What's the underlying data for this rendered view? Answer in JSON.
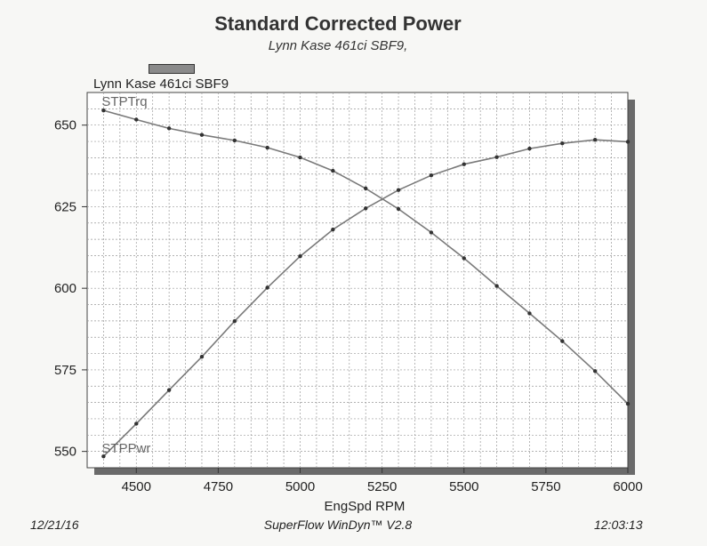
{
  "chart_data": {
    "type": "line",
    "title": "Standard Corrected Power",
    "subtitle": "Lynn Kase 461ci SBF9,",
    "legend": [
      "Lynn Kase 461ci SBF9"
    ],
    "xlabel": "EngSpd  RPM",
    "ylabel": "",
    "xlim": [
      4350,
      6000
    ],
    "ylim": [
      545,
      660
    ],
    "x_ticks": [
      "4500",
      "4750",
      "5000",
      "5250",
      "5500",
      "5750",
      "6000"
    ],
    "y_ticks": [
      "550",
      "575",
      "600",
      "625",
      "650"
    ],
    "grid": true,
    "x": [
      4400,
      4500,
      4600,
      4700,
      4800,
      4900,
      5000,
      5100,
      5200,
      5300,
      5400,
      5500,
      5600,
      5700,
      5800,
      5900,
      6000
    ],
    "series": [
      {
        "name": "STPTrq",
        "values": [
          654.5,
          651.7,
          649.0,
          647.0,
          645.3,
          643.1,
          640.1,
          636.0,
          630.6,
          624.3,
          617.1,
          609.2,
          600.7,
          592.3,
          583.8,
          574.6,
          564.6
        ]
      },
      {
        "name": "STPPwr",
        "values": [
          548.5,
          558.5,
          568.8,
          579.0,
          589.9,
          600.2,
          609.8,
          618.0,
          624.5,
          630.1,
          634.6,
          638.0,
          640.2,
          642.8,
          644.4,
          645.5,
          644.9
        ]
      }
    ]
  },
  "footer": {
    "date": "12/21/16",
    "software": "SuperFlow WinDyn™ V2.8",
    "time": "12:03:13"
  }
}
